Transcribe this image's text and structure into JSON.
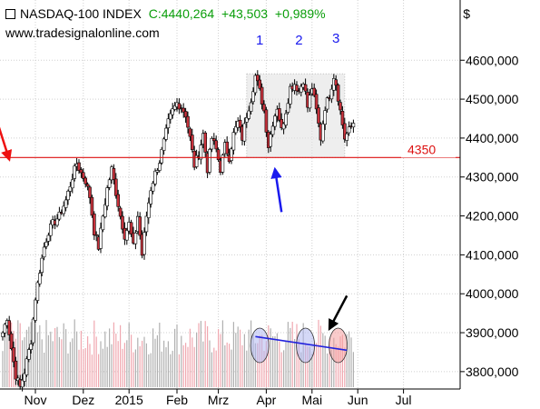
{
  "header": {
    "title": "NASDAQ-100 INDEX",
    "close": "C:4440,264",
    "change": "+43,503",
    "change_pct": "+0,989%",
    "website": "www.tradesignalonline.com",
    "currency": "$",
    "quote_color": "#0a9e0a"
  },
  "chart_data": {
    "type": "candlestick",
    "title": "NASDAQ-100 INDEX",
    "xlabel": "",
    "ylabel": "$",
    "ylim": [
      3760,
      4680
    ],
    "y_ticks": [
      3800,
      3900,
      4000,
      4100,
      4200,
      4300,
      4400,
      4500,
      4600
    ],
    "y_tick_labels": [
      "3800,000",
      "3900,000",
      "4000,000",
      "4100,000",
      "4200,000",
      "4300,000",
      "4400,000",
      "4500,000",
      "4600,000"
    ],
    "x_ticks": [
      "Nov",
      "Dez",
      "2015",
      "Feb",
      "Mrz",
      "Apr",
      "Mai",
      "Jun",
      "Jul"
    ],
    "x_tick_trading_days": [
      15,
      37,
      58,
      80,
      99,
      121,
      142,
      163,
      184
    ],
    "total_trading_days": 178,
    "grid": true,
    "colors": {
      "up_body": "#ffffff",
      "down_body": "#c8323c",
      "wick": "#000000",
      "resistance": "#dd1111",
      "highlight_box": "#e0e0e0",
      "arrow_red": "#ee1111",
      "arrow_blue": "#1a1aee",
      "arrow_black": "#000000",
      "trend_line": "#2222dd",
      "volume_up": "#b0b0b0",
      "volume_down": "#f0a8b0",
      "circle_blue": "#b0b8f0",
      "circle_red": "#f4a0a0"
    },
    "anchors": [
      [
        0,
        3900
      ],
      [
        2,
        3940
      ],
      [
        4,
        3860
      ],
      [
        6,
        3790
      ],
      [
        8,
        3760
      ],
      [
        10,
        3800
      ],
      [
        13,
        3880
      ],
      [
        15,
        3990
      ],
      [
        17,
        4060
      ],
      [
        19,
        4120
      ],
      [
        21,
        4160
      ],
      [
        23,
        4180
      ],
      [
        26,
        4200
      ],
      [
        29,
        4240
      ],
      [
        32,
        4300
      ],
      [
        34,
        4335
      ],
      [
        36,
        4310
      ],
      [
        38,
        4290
      ],
      [
        40,
        4250
      ],
      [
        42,
        4160
      ],
      [
        44,
        4120
      ],
      [
        46,
        4200
      ],
      [
        48,
        4270
      ],
      [
        50,
        4320
      ],
      [
        52,
        4260
      ],
      [
        54,
        4200
      ],
      [
        56,
        4150
      ],
      [
        58,
        4180
      ],
      [
        60,
        4120
      ],
      [
        62,
        4200
      ],
      [
        64,
        4100
      ],
      [
        66,
        4200
      ],
      [
        68,
        4270
      ],
      [
        70,
        4310
      ],
      [
        72,
        4340
      ],
      [
        74,
        4390
      ],
      [
        76,
        4440
      ],
      [
        78,
        4470
      ],
      [
        80,
        4490
      ],
      [
        82,
        4480
      ],
      [
        84,
        4460
      ],
      [
        86,
        4400
      ],
      [
        88,
        4330
      ],
      [
        90,
        4360
      ],
      [
        92,
        4410
      ],
      [
        94,
        4320
      ],
      [
        96,
        4400
      ],
      [
        98,
        4370
      ],
      [
        100,
        4320
      ],
      [
        102,
        4380
      ],
      [
        104,
        4350
      ],
      [
        106,
        4410
      ],
      [
        108,
        4440
      ],
      [
        110,
        4400
      ],
      [
        112,
        4460
      ],
      [
        114,
        4500
      ],
      [
        116,
        4560
      ],
      [
        118,
        4520
      ],
      [
        120,
        4470
      ],
      [
        122,
        4380
      ],
      [
        124,
        4440
      ],
      [
        126,
        4480
      ],
      [
        128,
        4420
      ],
      [
        130,
        4470
      ],
      [
        132,
        4530
      ],
      [
        134,
        4540
      ],
      [
        136,
        4520
      ],
      [
        138,
        4550
      ],
      [
        140,
        4480
      ],
      [
        142,
        4530
      ],
      [
        144,
        4470
      ],
      [
        146,
        4400
      ],
      [
        148,
        4480
      ],
      [
        150,
        4510
      ],
      [
        152,
        4560
      ],
      [
        153,
        4540
      ],
      [
        155,
        4470
      ],
      [
        157,
        4400
      ],
      [
        159,
        4420
      ],
      [
        161,
        4440
      ]
    ],
    "resistance_value": 4350,
    "resistance_label": "4350",
    "highlight_box": {
      "x_days": [
        112,
        157
      ],
      "y": [
        4350,
        4565
      ]
    },
    "peak_labels": [
      {
        "label": "1",
        "x_day": 118,
        "y": 4640
      },
      {
        "label": "2",
        "x_day": 136,
        "y": 4640
      },
      {
        "label": "3",
        "x_day": 153,
        "y": 4645
      }
    ],
    "arrows": [
      {
        "color": "red",
        "from": [
          -7,
          4520
        ],
        "to": [
          3,
          4345
        ]
      },
      {
        "color": "blue",
        "from": [
          128,
          4210
        ],
        "to": [
          125,
          4320
        ]
      },
      {
        "color": "black",
        "from": [
          158,
          3995
        ],
        "to": [
          150,
          3910
        ]
      }
    ],
    "volume": {
      "trend_from": [
        116,
        3890
      ],
      "trend_to": [
        158,
        3855
      ],
      "circles": [
        {
          "x_day": 118,
          "color": "blue"
        },
        {
          "x_day": 139,
          "color": "blue"
        },
        {
          "x_day": 154,
          "color": "red"
        }
      ]
    }
  }
}
